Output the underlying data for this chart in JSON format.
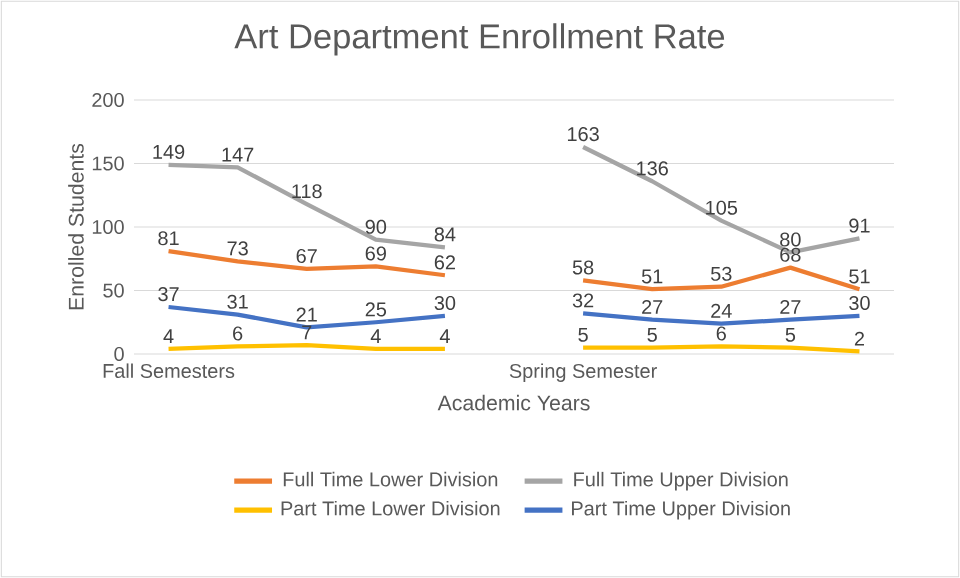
{
  "chart_data": {
    "type": "line",
    "title": "Art Department Enrollment Rate",
    "xlabel": "Academic Years",
    "ylabel": "Enrolled Students",
    "categories": [
      "Fall Semesters",
      null,
      null,
      null,
      null,
      null,
      "Spring Semester",
      null,
      null,
      null,
      null
    ],
    "series": [
      {
        "name": "Full Time Lower Division",
        "color": "#ed7d31",
        "values": [
          81,
          73,
          67,
          69,
          62,
          null,
          58,
          51,
          53,
          68,
          51
        ]
      },
      {
        "name": "Full Time Upper Division",
        "color": "#a5a5a5",
        "values": [
          149,
          147,
          118,
          90,
          84,
          null,
          163,
          136,
          105,
          80,
          91
        ]
      },
      {
        "name": "Part Time Lower Division",
        "color": "#ffc000",
        "values": [
          4,
          6,
          7,
          4,
          4,
          null,
          5,
          5,
          6,
          5,
          2
        ]
      },
      {
        "name": "Part Time Upper Division",
        "color": "#4472c4",
        "values": [
          37,
          31,
          21,
          25,
          30,
          null,
          32,
          27,
          24,
          27,
          30
        ]
      }
    ],
    "ylim": [
      0,
      200
    ],
    "yticks": [
      0,
      50,
      100,
      150,
      200
    ],
    "grid": "y",
    "legend": "bottom",
    "data_labels": true
  }
}
